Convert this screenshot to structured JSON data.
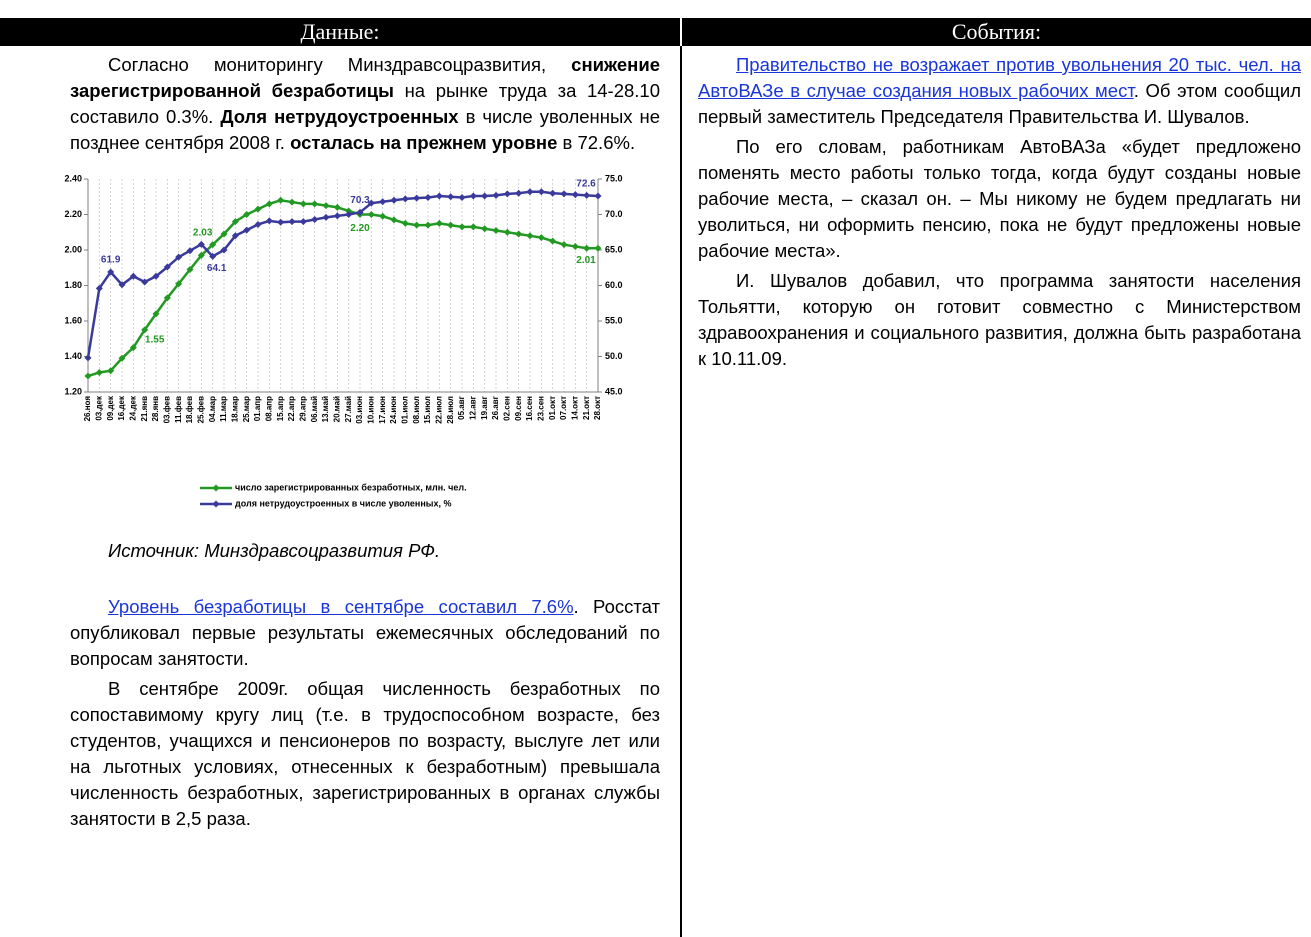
{
  "header": {
    "left": "Данные:",
    "right": "События:"
  },
  "left": {
    "p1": [
      "Согласно мониторингу Минздравсоцразвития, ",
      "снижение зарегистрированной безработицы",
      " на рынке труда за 14-28.10 составило 0.3%. ",
      "Доля нетрудоустроенных",
      " в числе уволенных не позднее сентября 2008 г. ",
      "осталась на прежнем уровне",
      " в 72.6%."
    ],
    "source": "Источник: Минздравсоцразвития РФ.",
    "p2": [
      "Уровень безработицы в сентябре составил 7.6%",
      ". Росстат опубликовал первые результаты ежемесячных обследований по вопросам занятости."
    ],
    "p3": "В сентябре 2009г. общая численность безработных по сопоставимому кругу лиц (т.е. в трудоспособном возрасте, без студентов, учащихся и пенсионеров по возрасту, выслуге лет или на льготных условиях, отнесенных к безработным) превышала численность безработных, зарегистрированных в органах службы занятости в 2,5 раза."
  },
  "right": {
    "p1": [
      "Правительство не возражает против увольнения 20 тыс. чел. на АвтоВАЗе в случае создания новых рабочих мест",
      ". Об этом сообщил первый заместитель Председателя Правительства И. Шувалов."
    ],
    "p2": "По его словам, работникам АвтоВАЗа «будет предложено поменять место работы только тогда, когда будут созданы новые рабочие места, – сказал он. – Мы никому не будем предлагать ни уволиться, ни оформить пенсию, пока не будут предложены новые рабочие места».",
    "p3": "И. Шувалов добавил, что программа занятости населения Тольятти, которую он готовит совместно с Министерством здравоохранения и социального развития, должна быть разработана к 10.11.09."
  },
  "chart_data": {
    "type": "line",
    "categories": [
      "26.ноя",
      "03.дек",
      "09.дек",
      "16.дек",
      "24.дек",
      "21.янв",
      "28.янв",
      "03.фев",
      "11.фев",
      "18.фев",
      "25.фев",
      "04.мар",
      "11.мар",
      "18.мар",
      "25.мар",
      "01.апр",
      "08.апр",
      "15.апр",
      "22.апр",
      "29.апр",
      "06.май",
      "13.май",
      "20.май",
      "27.май",
      "03.июн",
      "10.июн",
      "17.июн",
      "24.июн",
      "01.июл",
      "08.июл",
      "15.июл",
      "22.июл",
      "28.июл",
      "05.авг",
      "12.авг",
      "19.авг",
      "26.авг",
      "02.сен",
      "09.сен",
      "16.сен",
      "23.сен",
      "01.окт",
      "07.окт",
      "14.окт",
      "21.окт",
      "28.окт"
    ],
    "series": [
      {
        "name": "число зарегистрированных безработных, млн. чел.",
        "color": "#229922",
        "axis": "y",
        "values": [
          1.29,
          1.31,
          1.32,
          1.39,
          1.45,
          1.55,
          1.64,
          1.73,
          1.81,
          1.89,
          1.97,
          2.03,
          2.09,
          2.16,
          2.2,
          2.23,
          2.26,
          2.28,
          2.27,
          2.26,
          2.26,
          2.25,
          2.24,
          2.22,
          2.2,
          2.2,
          2.19,
          2.17,
          2.15,
          2.14,
          2.14,
          2.15,
          2.14,
          2.13,
          2.13,
          2.12,
          2.11,
          2.1,
          2.09,
          2.08,
          2.07,
          2.05,
          2.03,
          2.02,
          2.01,
          2.01
        ],
        "value_labels": [
          null,
          null,
          null,
          null,
          null,
          "1.55",
          null,
          null,
          null,
          null,
          null,
          "2.03",
          null,
          null,
          null,
          null,
          null,
          null,
          null,
          null,
          null,
          null,
          null,
          null,
          "2.20",
          null,
          null,
          null,
          null,
          null,
          null,
          null,
          null,
          null,
          null,
          null,
          null,
          null,
          null,
          null,
          null,
          null,
          null,
          null,
          null,
          "2.01"
        ]
      },
      {
        "name": "доля нетрудоустроенных в числе уволенных, %",
        "color": "#3a3a9c",
        "axis": "y2",
        "values": [
          49.8,
          59.6,
          61.9,
          60.1,
          61.3,
          60.5,
          61.3,
          62.6,
          64.0,
          64.9,
          65.8,
          64.1,
          65.0,
          67.0,
          67.8,
          68.6,
          69.1,
          68.9,
          69.0,
          69.0,
          69.3,
          69.6,
          69.8,
          70.0,
          70.3,
          71.6,
          71.8,
          72.0,
          72.2,
          72.3,
          72.4,
          72.6,
          72.5,
          72.4,
          72.6,
          72.6,
          72.7,
          72.9,
          73.0,
          73.2,
          73.2,
          73.0,
          72.9,
          72.8,
          72.7,
          72.6
        ],
        "value_labels": [
          null,
          null,
          "61.9",
          null,
          null,
          null,
          null,
          null,
          null,
          null,
          null,
          "64.1",
          null,
          null,
          null,
          null,
          null,
          null,
          null,
          null,
          null,
          null,
          null,
          null,
          "70.3",
          null,
          null,
          null,
          null,
          null,
          null,
          null,
          null,
          null,
          null,
          null,
          null,
          null,
          null,
          null,
          null,
          null,
          null,
          null,
          null,
          "72.6"
        ]
      }
    ],
    "ylim": [
      1.2,
      2.4
    ],
    "yticks": [
      {
        "value": 1.2,
        "label": "1.20"
      },
      {
        "value": 1.4,
        "label": "1.40"
      },
      {
        "value": 1.6,
        "label": "1.60"
      },
      {
        "value": 1.8,
        "label": "1.80"
      },
      {
        "value": 2.0,
        "label": "2.00"
      },
      {
        "value": 2.2,
        "label": "2.20"
      },
      {
        "value": 2.4,
        "label": "2.40"
      }
    ],
    "y2lim": [
      45,
      75
    ],
    "y2ticks": [
      {
        "value": 45,
        "label": "45.0"
      },
      {
        "value": 50,
        "label": "50.0"
      },
      {
        "value": 55,
        "label": "55.0"
      },
      {
        "value": 60,
        "label": "60.0"
      },
      {
        "value": 65,
        "label": "65.0"
      },
      {
        "value": 70,
        "label": "70.0"
      },
      {
        "value": 75,
        "label": "75.0"
      }
    ],
    "grid": true,
    "legend": "bottom"
  }
}
